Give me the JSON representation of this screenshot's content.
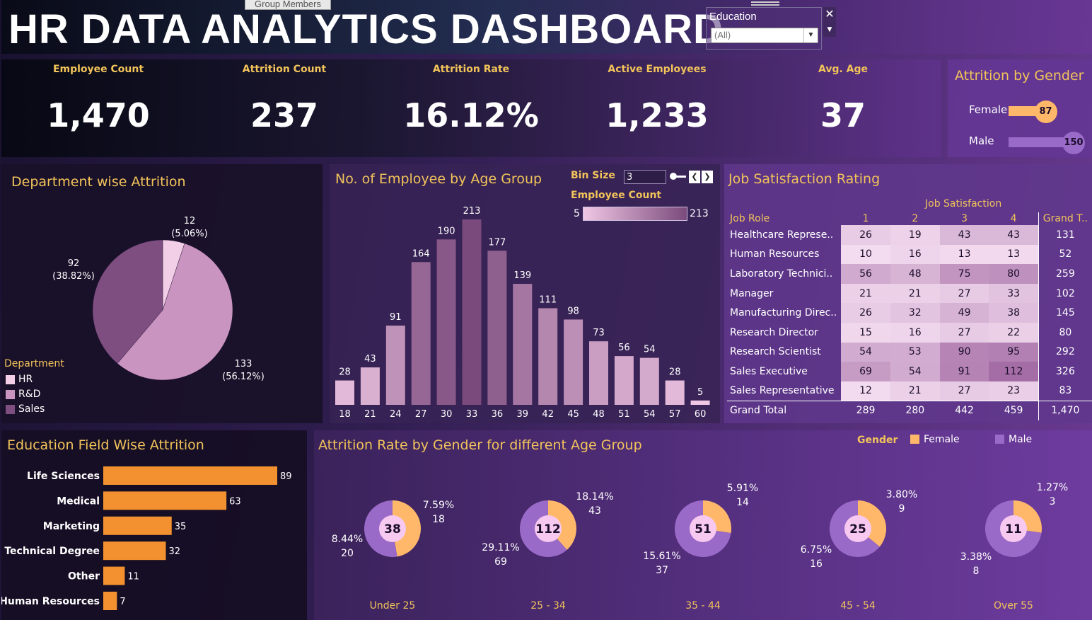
{
  "header": {
    "title": "HR DATA ANALYTICS DASHBOARD",
    "group_tab": "Group Members",
    "filter_label": "Education",
    "filter_value": "(All)"
  },
  "kpis": [
    {
      "label": "Employee Count",
      "value": "1,470"
    },
    {
      "label": "Attrition Count",
      "value": "237"
    },
    {
      "label": "Attrition Rate",
      "value": "16.12%"
    },
    {
      "label": "Active Employees",
      "value": "1,233"
    },
    {
      "label": "Avg. Age",
      "value": "37"
    }
  ],
  "colors": {
    "gold": "#f2c45a",
    "orange": "#f39130",
    "female": "#ffb86a",
    "male": "#9a6ac8",
    "hr": "#f2cfe6",
    "rnd": "#c994bf",
    "sales": "#7e4e80",
    "bar_low": "#f0c7e4",
    "bar_high": "#7a4a7c"
  },
  "chart_data": [
    {
      "id": "attrition_by_gender",
      "type": "bar",
      "title": "Attrition by Gender",
      "categories": [
        "Female",
        "Male"
      ],
      "values": [
        87,
        150
      ]
    },
    {
      "id": "department_attrition",
      "type": "pie",
      "title": "Department wise Attrition",
      "legend_title": "Department",
      "legend_position": "bottom-left",
      "categories": [
        "HR",
        "R&D",
        "Sales"
      ],
      "values": [
        12,
        133,
        92
      ],
      "percent_labels": [
        "(5.06%)",
        "(56.12%)",
        "(38.82%)"
      ]
    },
    {
      "id": "employees_by_age_group",
      "type": "bar",
      "title": "No. of Employee by Age Group",
      "bin_size_label": "Bin Size",
      "bin_size": "3",
      "legend_title": "Employee Count",
      "legend_min": "5",
      "legend_max": "213",
      "categories": [
        "18",
        "21",
        "24",
        "27",
        "30",
        "33",
        "36",
        "39",
        "42",
        "45",
        "48",
        "51",
        "54",
        "57",
        "60"
      ],
      "values": [
        28,
        43,
        91,
        164,
        190,
        213,
        177,
        139,
        111,
        98,
        73,
        56,
        54,
        28,
        5
      ],
      "ylim": [
        0,
        213
      ]
    },
    {
      "id": "job_satisfaction",
      "type": "table",
      "title": "Job Satisfaction Rating",
      "column_group": "Job Satisfaction",
      "row_header": "Job Role",
      "columns": [
        "1",
        "2",
        "3",
        "4"
      ],
      "total_header": "Grand T..",
      "total_row_label": "Grand Total",
      "rows": [
        {
          "role": "Healthcare Represe..",
          "values": [
            26,
            19,
            43,
            43
          ],
          "total": "131"
        },
        {
          "role": "Human Resources",
          "values": [
            10,
            16,
            13,
            13
          ],
          "total": "52"
        },
        {
          "role": "Laboratory Technici..",
          "values": [
            56,
            48,
            75,
            80
          ],
          "total": "259"
        },
        {
          "role": "Manager",
          "values": [
            21,
            21,
            27,
            33
          ],
          "total": "102"
        },
        {
          "role": "Manufacturing Direc..",
          "values": [
            26,
            32,
            49,
            38
          ],
          "total": "145"
        },
        {
          "role": "Research Director",
          "values": [
            15,
            16,
            27,
            22
          ],
          "total": "80"
        },
        {
          "role": "Research Scientist",
          "values": [
            54,
            53,
            90,
            95
          ],
          "total": "292"
        },
        {
          "role": "Sales Executive",
          "values": [
            69,
            54,
            91,
            112
          ],
          "total": "326"
        },
        {
          "role": "Sales Representative",
          "values": [
            12,
            21,
            27,
            23
          ],
          "total": "83"
        }
      ],
      "column_totals": [
        "289",
        "280",
        "442",
        "459"
      ],
      "grand_total": "1,470"
    },
    {
      "id": "education_field_attrition",
      "type": "bar",
      "orientation": "horizontal",
      "title": "Education Field Wise Attrition",
      "categories": [
        "Life Sciences",
        "Medical",
        "Marketing",
        "Technical Degree",
        "Other",
        "Human Resources"
      ],
      "values": [
        89,
        63,
        35,
        32,
        11,
        7
      ]
    },
    {
      "id": "attrition_rate_gender_age",
      "type": "pie",
      "title": "Attrition Rate by Gender for  different Age Group",
      "legend_title": "Gender",
      "legend_position": "top-right",
      "series_names": [
        "Female",
        "Male"
      ],
      "groups": [
        {
          "label": "Under 25",
          "total": 38,
          "female": {
            "pct": "7.59%",
            "count": 18
          },
          "male": {
            "pct": "8.44%",
            "count": 20
          }
        },
        {
          "label": "25 - 34",
          "total": 112,
          "female": {
            "pct": "18.14%",
            "count": 43
          },
          "male": {
            "pct": "29.11%",
            "count": 69
          }
        },
        {
          "label": "35 - 44",
          "total": 51,
          "female": {
            "pct": "5.91%",
            "count": 14
          },
          "male": {
            "pct": "15.61%",
            "count": 37
          }
        },
        {
          "label": "45 - 54",
          "total": 25,
          "female": {
            "pct": "3.80%",
            "count": 9
          },
          "male": {
            "pct": "6.75%",
            "count": 16
          }
        },
        {
          "label": "Over 55",
          "total": 11,
          "female": {
            "pct": "1.27%",
            "count": 3
          },
          "male": {
            "pct": "3.38%",
            "count": 8
          }
        }
      ]
    }
  ]
}
